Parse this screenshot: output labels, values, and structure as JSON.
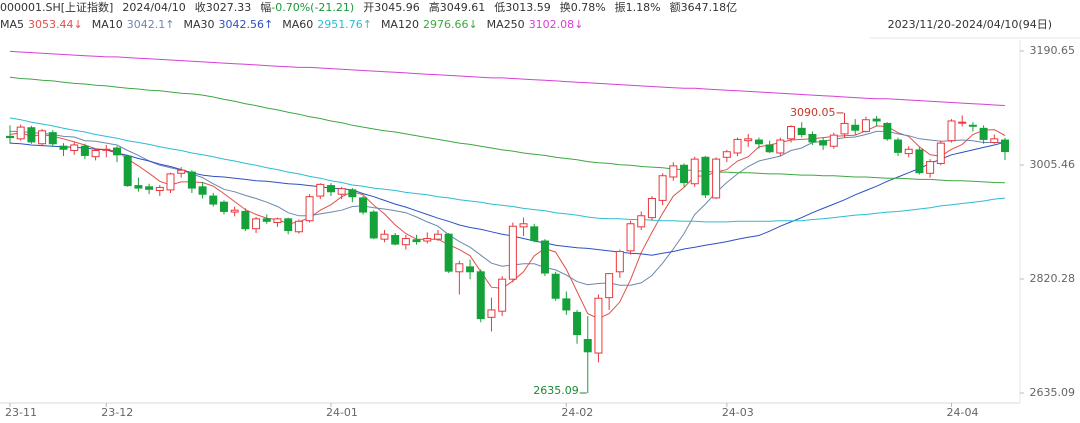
{
  "chart_data": {
    "type": "candlestick",
    "symbol": "000001.SH[上证指数]",
    "date": "2024/04/10",
    "info": [
      {
        "label": "收",
        "value": "3027.33"
      },
      {
        "label": "幅",
        "value": "-0.70%(-21.21)",
        "color": "#1a9a3a"
      },
      {
        "label": "开",
        "value": "3045.96"
      },
      {
        "label": "高",
        "value": "3049.61"
      },
      {
        "label": "低",
        "value": "3013.59"
      },
      {
        "label": "换",
        "value": "0.78%"
      },
      {
        "label": "振",
        "value": "1.18%"
      },
      {
        "label": "额",
        "value": "3647.18亿"
      }
    ],
    "range": "2023/11/20-2024/04/10(94日)",
    "up_color": "#e8383d",
    "down_color": "#15a13a",
    "categories": [
      "23-11",
      null,
      null,
      null,
      null,
      null,
      null,
      null,
      null,
      "23-12",
      null,
      null,
      null,
      null,
      null,
      null,
      null,
      null,
      null,
      null,
      null,
      null,
      null,
      null,
      null,
      null,
      null,
      null,
      null,
      null,
      "24-01",
      null,
      null,
      null,
      null,
      null,
      null,
      null,
      null,
      null,
      null,
      null,
      null,
      null,
      null,
      null,
      null,
      null,
      null,
      null,
      null,
      null,
      "24-02",
      null,
      null,
      null,
      null,
      null,
      null,
      null,
      null,
      null,
      null,
      null,
      null,
      null,
      null,
      "24-03",
      null,
      null,
      null,
      null,
      null,
      null,
      null,
      null,
      null,
      null,
      null,
      null,
      null,
      null,
      null,
      null,
      null,
      null,
      null,
      null,
      "24-04",
      null,
      null,
      null,
      null,
      null
    ],
    "ohlc": [
      [
        3052,
        3070,
        3040,
        3050
      ],
      [
        3048,
        3071,
        3045,
        3067
      ],
      [
        3066,
        3069,
        3040,
        3043
      ],
      [
        3040,
        3064,
        3036,
        3061
      ],
      [
        3058,
        3062,
        3035,
        3040
      ],
      [
        3036,
        3041,
        3020,
        3031
      ],
      [
        3029,
        3042,
        3022,
        3038
      ],
      [
        3036,
        3040,
        3015,
        3021
      ],
      [
        3019,
        3032,
        3013,
        3029
      ],
      [
        3030,
        3038,
        3018,
        3031
      ],
      [
        3033,
        3036,
        3010,
        3022
      ],
      [
        3020,
        3022,
        2970,
        2972
      ],
      [
        2972,
        2985,
        2962,
        2968
      ],
      [
        2970,
        2975,
        2958,
        2966
      ],
      [
        2964,
        2973,
        2955,
        2969
      ],
      [
        2965,
        2993,
        2960,
        2991
      ],
      [
        2992,
        3002,
        2985,
        2997
      ],
      [
        2994,
        2997,
        2960,
        2968
      ],
      [
        2970,
        2978,
        2951,
        2958
      ],
      [
        2955,
        2960,
        2938,
        2942
      ],
      [
        2945,
        2948,
        2925,
        2930
      ],
      [
        2929,
        2938,
        2922,
        2932
      ],
      [
        2930,
        2935,
        2898,
        2902
      ],
      [
        2902,
        2921,
        2895,
        2918
      ],
      [
        2918,
        2925,
        2910,
        2914
      ],
      [
        2912,
        2920,
        2905,
        2918
      ],
      [
        2918,
        2920,
        2893,
        2899
      ],
      [
        2897,
        2917,
        2894,
        2914
      ],
      [
        2915,
        2958,
        2912,
        2954
      ],
      [
        2955,
        2976,
        2950,
        2974
      ],
      [
        2972,
        2976,
        2955,
        2962
      ],
      [
        2958,
        2970,
        2950,
        2967
      ],
      [
        2965,
        2968,
        2945,
        2954
      ],
      [
        2952,
        2955,
        2925,
        2929
      ],
      [
        2929,
        2932,
        2885,
        2887
      ],
      [
        2885,
        2900,
        2880,
        2893
      ],
      [
        2891,
        2895,
        2875,
        2877
      ],
      [
        2876,
        2892,
        2868,
        2886
      ],
      [
        2884,
        2892,
        2876,
        2881
      ],
      [
        2882,
        2896,
        2878,
        2886
      ],
      [
        2885,
        2900,
        2882,
        2893
      ],
      [
        2893,
        2895,
        2830,
        2833
      ],
      [
        2832,
        2850,
        2795,
        2845
      ],
      [
        2840,
        2852,
        2820,
        2832
      ],
      [
        2832,
        2836,
        2750,
        2756
      ],
      [
        2758,
        2790,
        2735,
        2770
      ],
      [
        2768,
        2825,
        2760,
        2820
      ],
      [
        2820,
        2912,
        2815,
        2906
      ],
      [
        2905,
        2920,
        2890,
        2910
      ],
      [
        2905,
        2910,
        2880,
        2883
      ],
      [
        2882,
        2885,
        2825,
        2830
      ],
      [
        2828,
        2832,
        2785,
        2789
      ],
      [
        2788,
        2800,
        2762,
        2770
      ],
      [
        2766,
        2770,
        2715,
        2730
      ],
      [
        2722,
        2760,
        2635.09,
        2702
      ],
      [
        2700,
        2795,
        2685,
        2789
      ],
      [
        2790,
        2830,
        2770,
        2829
      ],
      [
        2832,
        2868,
        2822,
        2865
      ],
      [
        2866,
        2915,
        2860,
        2910
      ],
      [
        2905,
        2930,
        2900,
        2923
      ],
      [
        2920,
        2955,
        2915,
        2951
      ],
      [
        2948,
        2992,
        2940,
        2988
      ],
      [
        2986,
        3010,
        2980,
        3004
      ],
      [
        3005,
        3008,
        2970,
        2977
      ],
      [
        2975,
        3019,
        2970,
        3015
      ],
      [
        3018,
        3020,
        2952,
        2957
      ],
      [
        2952,
        3018,
        2950,
        3015
      ],
      [
        3018,
        3030,
        3010,
        3027
      ],
      [
        3025,
        3050,
        3020,
        3047
      ],
      [
        3045,
        3056,
        3035,
        3048
      ],
      [
        3046,
        3050,
        3032,
        3040
      ],
      [
        3038,
        3045,
        3025,
        3027
      ],
      [
        3025,
        3050,
        3020,
        3046
      ],
      [
        3048,
        3070,
        3042,
        3068
      ],
      [
        3065,
        3075,
        3050,
        3055
      ],
      [
        3055,
        3060,
        3038,
        3043
      ],
      [
        3045,
        3050,
        3030,
        3038
      ],
      [
        3036,
        3058,
        3032,
        3054
      ],
      [
        3056,
        3090.05,
        3050,
        3073
      ],
      [
        3070,
        3080,
        3055,
        3062
      ],
      [
        3060,
        3084,
        3058,
        3079
      ],
      [
        3080,
        3085,
        3068,
        3077
      ],
      [
        3073,
        3075,
        3045,
        3048
      ],
      [
        3046,
        3050,
        3020,
        3026
      ],
      [
        3024,
        3036,
        3018,
        3031
      ],
      [
        3030,
        3035,
        2990,
        2993
      ],
      [
        2992,
        3015,
        2985,
        3011
      ],
      [
        3008,
        3045,
        3005,
        3041
      ],
      [
        3045,
        3080,
        3042,
        3077
      ],
      [
        3074,
        3086,
        3068,
        3075
      ],
      [
        3070,
        3075,
        3060,
        3069
      ],
      [
        3065,
        3070,
        3040,
        3047
      ],
      [
        3042,
        3055,
        3040,
        3048
      ],
      [
        3045.96,
        3049.61,
        3013.59,
        3027.33
      ]
    ],
    "ma": [
      {
        "name": "MA5",
        "color": "#e0504a",
        "trend": "↓",
        "values": [
          3055,
          3058,
          3052,
          3055,
          3052,
          3048,
          3043,
          3038,
          3032,
          3030,
          3028,
          3015,
          3004,
          2992,
          2979,
          2973,
          2978,
          2978,
          2977,
          2971,
          2959,
          2946,
          2933,
          2925,
          2919,
          2917,
          2910,
          2913,
          2920,
          2932,
          2941,
          2954,
          2962,
          2957,
          2940,
          2926,
          2908,
          2894,
          2885,
          2885,
          2885,
          2876,
          2868,
          2858,
          2832,
          2807,
          2805,
          2817,
          2832,
          2858,
          2870,
          2864,
          2836,
          2800,
          2764,
          2756,
          2764,
          2783,
          2819,
          2863,
          2896,
          2927,
          2955,
          2969,
          2987,
          2988,
          2994,
          2998,
          3012,
          3019,
          3035,
          3038,
          3042,
          3046,
          3047,
          3048,
          3050,
          3052,
          3053,
          3054,
          3061,
          3069,
          3068,
          3058,
          3052,
          3035,
          3022,
          3020,
          3031,
          3039,
          3055,
          3062,
          3063,
          3053.44
        ]
      },
      {
        "name": "MA10",
        "color": "#6b88ad",
        "trend": "↑",
        "values": [
          3060,
          3060,
          3058,
          3057,
          3055,
          3052,
          3051,
          3045,
          3044,
          3041,
          3038,
          3029,
          3021,
          3012,
          3005,
          3001,
          2997,
          2991,
          2985,
          2975,
          2966,
          2962,
          2956,
          2951,
          2945,
          2938,
          2928,
          2923,
          2923,
          2926,
          2929,
          2932,
          2938,
          2939,
          2936,
          2934,
          2931,
          2928,
          2921,
          2913,
          2906,
          2892,
          2881,
          2872,
          2859,
          2846,
          2841,
          2843,
          2845,
          2845,
          2839,
          2835,
          2827,
          2816,
          2811,
          2813,
          2814,
          2810,
          2810,
          2814,
          2826,
          2846,
          2869,
          2894,
          2925,
          2942,
          2961,
          2977,
          2991,
          3003,
          3012,
          3016,
          3020,
          3029,
          3033,
          3042,
          3044,
          3047,
          3050,
          3051,
          3055,
          3060,
          3060,
          3056,
          3053,
          3048,
          3046,
          3044,
          3045,
          3046,
          3045,
          3042,
          3042,
          3042.1
        ]
      },
      {
        "name": "MA30",
        "color": "#2e4fc6",
        "trend": "↑",
        "values": [
          3041,
          3040,
          3038,
          3037,
          3036,
          3035,
          3034,
          3033,
          3031,
          3030,
          3025,
          3021,
          3016,
          3012,
          3007,
          3003,
          2998,
          2993,
          2989,
          2987,
          2986,
          2984,
          2982,
          2980,
          2979,
          2977,
          2975,
          2974,
          2972,
          2970,
          2968,
          2967,
          2965,
          2959,
          2954,
          2948,
          2942,
          2937,
          2931,
          2925,
          2919,
          2914,
          2908,
          2904,
          2901,
          2897,
          2893,
          2890,
          2886,
          2882,
          2879,
          2875,
          2873,
          2871,
          2870,
          2868,
          2866,
          2864,
          2862,
          2861,
          2859,
          2862,
          2865,
          2869,
          2872,
          2875,
          2878,
          2881,
          2885,
          2888,
          2891,
          2898,
          2906,
          2913,
          2920,
          2928,
          2935,
          2942,
          2949,
          2957,
          2964,
          2971,
          2979,
          2986,
          2993,
          3000,
          3008,
          3015,
          3022,
          3026,
          3030,
          3034,
          3038,
          3042.56
        ]
      },
      {
        "name": "MA60",
        "color": "#2cbcd3",
        "trend": "↑",
        "values": [
          3082,
          3079,
          3075,
          3072,
          3069,
          3065,
          3062,
          3059,
          3055,
          3052,
          3049,
          3045,
          3042,
          3039,
          3035,
          3032,
          3029,
          3025,
          3022,
          3019,
          3015,
          3012,
          3008,
          3005,
          3001,
          2998,
          2994,
          2991,
          2987,
          2984,
          2980,
          2977,
          2973,
          2971,
          2968,
          2966,
          2964,
          2961,
          2959,
          2957,
          2954,
          2952,
          2949,
          2947,
          2945,
          2942,
          2940,
          2938,
          2935,
          2933,
          2931,
          2928,
          2926,
          2924,
          2921,
          2919,
          2918,
          2918,
          2917,
          2917,
          2916,
          2915,
          2915,
          2914,
          2914,
          2913,
          2913,
          2913,
          2914,
          2914,
          2914,
          2914,
          2915,
          2915,
          2915,
          2917,
          2918,
          2920,
          2922,
          2924,
          2925,
          2927,
          2929,
          2930,
          2932,
          2934,
          2936,
          2939,
          2941,
          2943,
          2945,
          2947,
          2950,
          2951.76
        ]
      },
      {
        "name": "MA120",
        "color": "#3ea743",
        "trend": "↓",
        "values": [
          3148,
          3146,
          3145,
          3143,
          3142,
          3140,
          3138,
          3137,
          3135,
          3134,
          3132,
          3130,
          3129,
          3127,
          3126,
          3124,
          3122,
          3121,
          3119,
          3116,
          3112,
          3109,
          3105,
          3102,
          3098,
          3095,
          3091,
          3088,
          3084,
          3081,
          3077,
          3074,
          3070,
          3067,
          3064,
          3061,
          3059,
          3056,
          3053,
          3050,
          3047,
          3044,
          3041,
          3039,
          3036,
          3033,
          3030,
          3028,
          3025,
          3023,
          3021,
          3018,
          3016,
          3014,
          3011,
          3009,
          3008,
          3006,
          3005,
          3003,
          3002,
          3001,
          2999,
          2998,
          2996,
          2995,
          2994,
          2994,
          2993,
          2993,
          2992,
          2991,
          2991,
          2990,
          2989,
          2989,
          2988,
          2988,
          2987,
          2986,
          2986,
          2985,
          2984,
          2984,
          2983,
          2982,
          2982,
          2981,
          2980,
          2980,
          2979,
          2978,
          2977,
          2976.66
        ]
      },
      {
        "name": "MA250",
        "color": "#d63fd6",
        "trend": "↓",
        "values": [
          3190,
          3189,
          3188,
          3187,
          3186,
          3185,
          3184,
          3183,
          3182,
          3181,
          3181,
          3180,
          3179,
          3178,
          3177,
          3176,
          3175,
          3174,
          3173,
          3172,
          3171,
          3170,
          3169,
          3168,
          3167,
          3166,
          3165,
          3164,
          3164,
          3163,
          3162,
          3161,
          3160,
          3159,
          3158,
          3157,
          3156,
          3155,
          3154,
          3153,
          3152,
          3151,
          3150,
          3149,
          3148,
          3147,
          3147,
          3146,
          3145,
          3144,
          3143,
          3142,
          3141,
          3140,
          3139,
          3138,
          3137,
          3136,
          3135,
          3134,
          3133,
          3132,
          3131,
          3130,
          3130,
          3129,
          3128,
          3127,
          3126,
          3125,
          3124,
          3123,
          3122,
          3121,
          3120,
          3119,
          3118,
          3117,
          3116,
          3115,
          3114,
          3113,
          3113,
          3112,
          3111,
          3110,
          3109,
          3108,
          3107,
          3106,
          3105,
          3104,
          3103,
          3102.08
        ]
      }
    ],
    "ylim": [
      2635.09,
      3190.65
    ],
    "yticks": [
      3190.65,
      3005.46,
      2820.28,
      2635.09
    ]
  }
}
